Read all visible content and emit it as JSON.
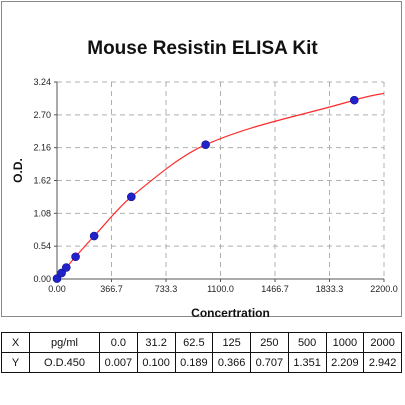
{
  "chart_data": {
    "type": "scatter",
    "title": "Mouse Resistin ELISA Kit",
    "xlabel": "Concertration",
    "ylabel": "O.D.",
    "xlim": [
      0,
      2200
    ],
    "ylim": [
      0,
      3.24
    ],
    "x_ticks": [
      "0.00",
      "366.7",
      "733.3",
      "1100.0",
      "1466.7",
      "1833.3",
      "2200.0"
    ],
    "y_ticks": [
      "0.00",
      "0.54",
      "1.08",
      "1.62",
      "2.16",
      "2.70",
      "3.24"
    ],
    "grid": true,
    "points": {
      "x": [
        0,
        31.2,
        62.5,
        125,
        250,
        500,
        1000,
        2000
      ],
      "y": [
        0.007,
        0.1,
        0.189,
        0.366,
        0.707,
        1.351,
        2.209,
        2.942
      ]
    },
    "fit_curve": true,
    "colors": {
      "point": "#2222cc",
      "curve": "#ff2a2a",
      "grid": "#b0b0b0"
    }
  },
  "table": {
    "rows": [
      {
        "label": "X",
        "unit": "pg/ml",
        "values": [
          "0.0",
          "31.2",
          "62.5",
          "125",
          "250",
          "500",
          "1000",
          "2000"
        ]
      },
      {
        "label": "Y",
        "unit": "O.D.450",
        "values": [
          "0.007",
          "0.100",
          "0.189",
          "0.366",
          "0.707",
          "1.351",
          "2.209",
          "2.942"
        ]
      }
    ]
  }
}
